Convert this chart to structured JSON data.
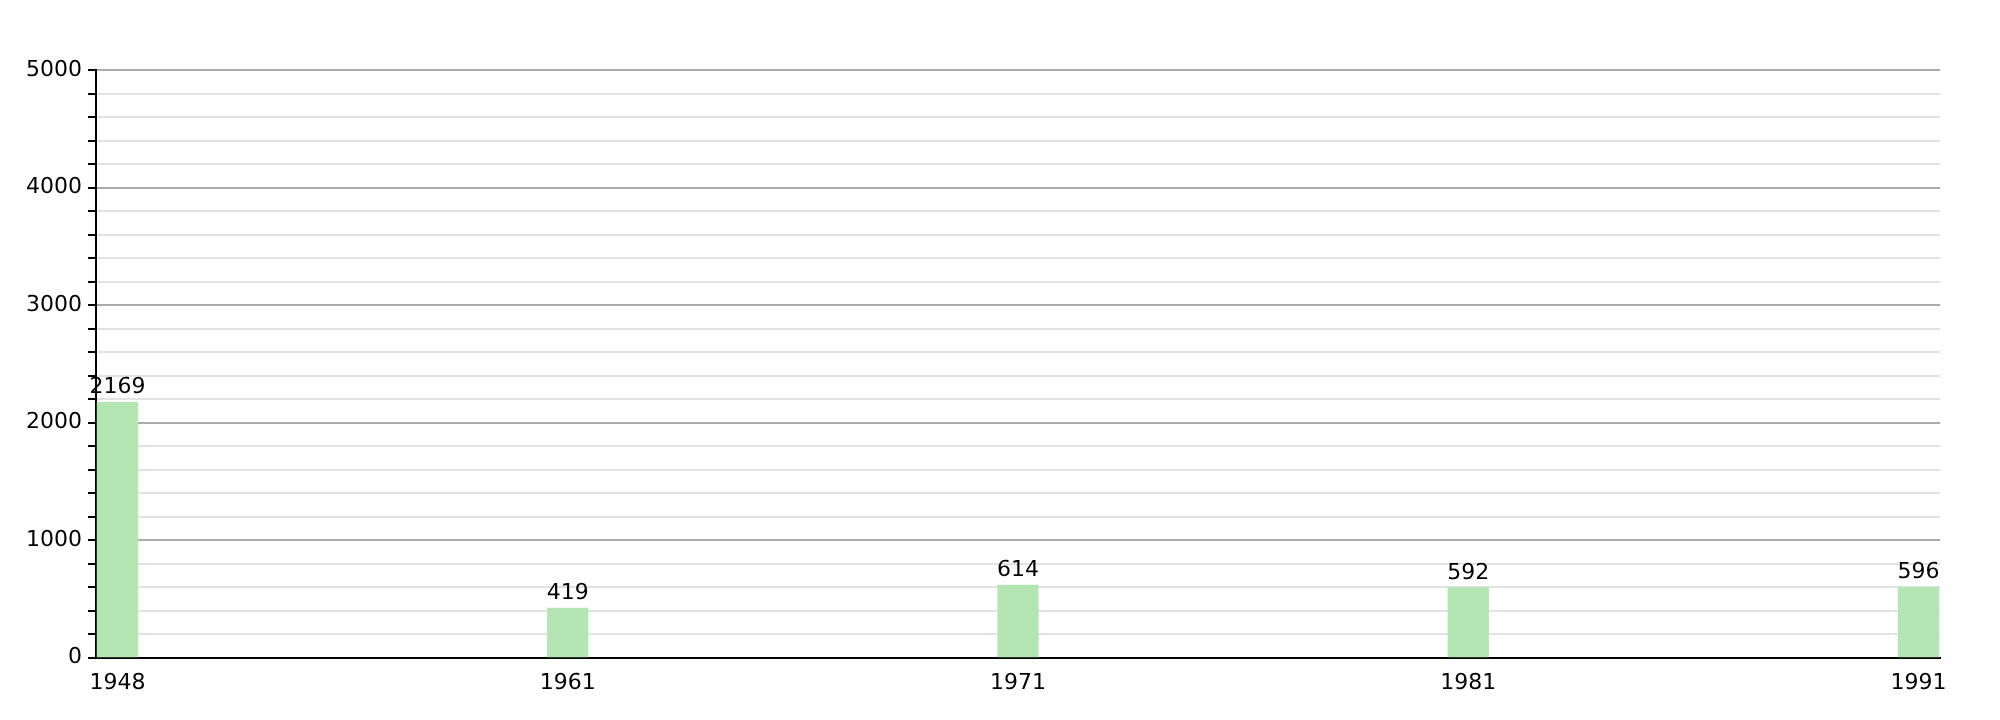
{
  "chart_data": {
    "type": "bar",
    "categories": [
      "1948",
      "1961",
      "1971",
      "1981",
      "1991"
    ],
    "values": [
      2169,
      419,
      614,
      592,
      596
    ],
    "color": "#b3e6b3",
    "ylim": [
      0,
      5000
    ],
    "yticks": [
      0,
      {
        "value": 200,
        "label": null
      },
      {
        "value": 400,
        "label": null
      },
      {
        "value": 600,
        "label": null
      },
      {
        "value": 800,
        "label": null
      },
      1000,
      {
        "value": 1200,
        "label": null
      },
      {
        "value": 1400,
        "label": null
      },
      {
        "value": 1600,
        "label": null
      },
      {
        "value": 1800,
        "label": null
      },
      2000,
      {
        "value": 2200,
        "label": null
      },
      {
        "value": 2400,
        "label": null
      },
      {
        "value": 2600,
        "label": null
      },
      {
        "value": 2800,
        "label": null
      },
      3000,
      {
        "value": 3200,
        "label": null
      },
      {
        "value": 3400,
        "label": null
      },
      {
        "value": 3600,
        "label": null
      },
      {
        "value": 3800,
        "label": null
      },
      4000,
      {
        "value": 4200,
        "label": null
      },
      {
        "value": 4400,
        "label": null
      },
      {
        "value": 4600,
        "label": null
      },
      {
        "value": 4800,
        "label": null
      },
      5000
    ],
    "grid": "y",
    "legend": false,
    "data_labels": true
  }
}
